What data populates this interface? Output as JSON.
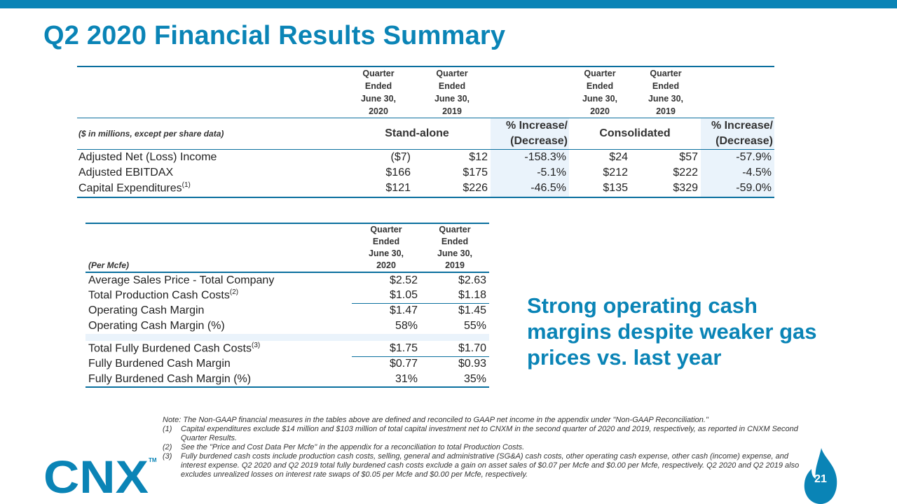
{
  "title": "Q2 2020 Financial Results Summary",
  "table1": {
    "col_headers": [
      [
        "Quarter",
        "Ended",
        "June 30,",
        "2020"
      ],
      [
        "Quarter",
        "Ended",
        "June 30,",
        "2019"
      ],
      [
        "Quarter",
        "Ended",
        "June 30,",
        "2020"
      ],
      [
        "Quarter",
        "Ended",
        "June 30,",
        "2019"
      ]
    ],
    "label_header": "($ in millions, except per share data)",
    "group1": "Stand-alone",
    "group2": "Consolidated",
    "pct_header_line1": "% Increase/",
    "pct_header_line2": "(Decrease)",
    "rows": [
      {
        "label": "Adjusted Net (Loss) Income",
        "sup": "",
        "sa2020": "($7)",
        "sa2019": "$12",
        "sa_pct": "-158.3%",
        "c2020": "$24",
        "c2019": "$57",
        "c_pct": "-57.9%"
      },
      {
        "label": "Adjusted EBITDAX",
        "sup": "",
        "sa2020": "$166",
        "sa2019": "$175",
        "sa_pct": "-5.1%",
        "c2020": "$212",
        "c2019": "$222",
        "c_pct": "-4.5%"
      },
      {
        "label": "Capital Expenditures",
        "sup": "(1)",
        "sa2020": "$121",
        "sa2019": "$226",
        "sa_pct": "-46.5%",
        "c2020": "$135",
        "c2019": "$329",
        "c_pct": "-59.0%"
      }
    ]
  },
  "table2": {
    "label_header": "(Per Mcfe)",
    "col_headers": [
      [
        "Quarter",
        "Ended",
        "June 30,",
        "2020"
      ],
      [
        "Quarter",
        "Ended",
        "June 30,",
        "2019"
      ]
    ],
    "rows": [
      {
        "label": "Average Sales Price - Total Company",
        "sup": "",
        "v2020": "$2.52",
        "v2019": "$2.63"
      },
      {
        "label": "Total Production Cash Costs",
        "sup": "(2)",
        "v2020": "$1.05",
        "v2019": "$1.18"
      },
      {
        "label": "Operating Cash Margin",
        "sup": "",
        "v2020": "$1.47",
        "v2019": "$1.45"
      },
      {
        "label": "Operating Cash Margin (%)",
        "sup": "",
        "v2020": "58%",
        "v2019": "55%"
      },
      {
        "label": "Total Fully Burdened Cash Costs",
        "sup": "(3)",
        "v2020": "$1.75",
        "v2019": "$1.70"
      },
      {
        "label": "Fully Burdened Cash Margin",
        "sup": "",
        "v2020": "$0.77",
        "v2019": "$0.93"
      },
      {
        "label": "Fully Burdened Cash Margin (%)",
        "sup": "",
        "v2020": "31%",
        "v2019": "35%"
      }
    ]
  },
  "callout": "Strong operating cash margins despite weaker gas prices vs. last year",
  "notes": {
    "intro": "Note: The Non-GAAP financial measures in the tables above are defined and reconciled to GAAP net income in the appendix under \"Non-GAAP Reconciliation.\"",
    "items": [
      {
        "key": "(1)",
        "text": "Capital expenditures exclude $14 million and $103 million of total capital investment net to CNXM in the second quarter of 2020 and 2019, respectively, as reported in CNXM Second Quarter Results."
      },
      {
        "key": "(2)",
        "text": "See the \"Price and Cost Data Per Mcfe\" in the appendix for a reconciliation to total Production Costs."
      },
      {
        "key": "(3)",
        "text": "Fully burdened cash costs include production cash costs, selling, general and administrative (SG&A) cash costs, other operating cash expense, other cash (income) expense, and interest expense. Q2 2020 and Q2 2019 total fully burdened cash costs exclude a gain on asset sales of $0.07 per Mcfe and $0.00 per Mcfe, respectively. Q2 2020 and Q2 2019 also excludes unrealized losses on interest rate swaps of $0.05 per Mcfe and $0.00 per Mcfe, respectively."
      }
    ]
  },
  "logo": {
    "text": "CNX",
    "tm": "TM",
    "color": "#0a84b6"
  },
  "page_number": "21",
  "colors": {
    "accent": "#0a84b6",
    "shade": "#eaf3fb"
  }
}
